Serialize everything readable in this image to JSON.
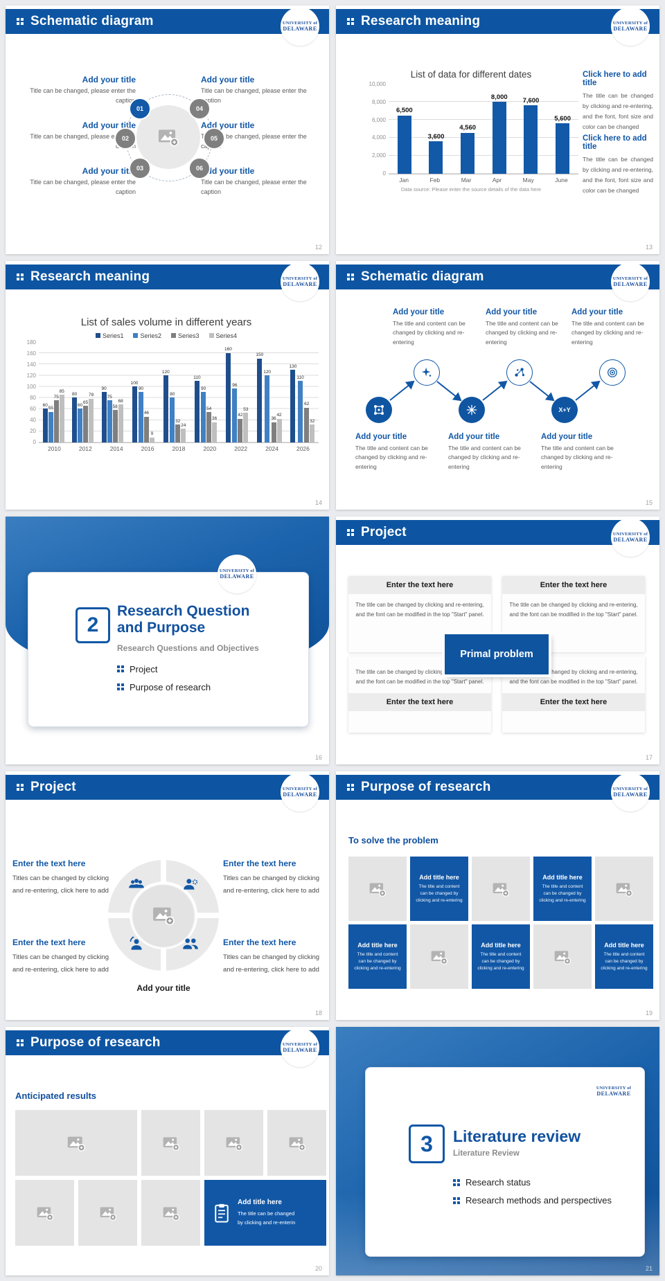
{
  "common": {
    "logo": {
      "l1": "UNIVERSITY of",
      "l2": "DELAWARE"
    }
  },
  "chart_data": [
    {
      "type": "bar",
      "title": "List of data for different dates",
      "categories": [
        "Jan",
        "Feb",
        "Mar",
        "Apr",
        "May",
        "June"
      ],
      "values": [
        6500,
        3600,
        4560,
        8000,
        7600,
        5600
      ],
      "labels": [
        "6,500",
        "3,600",
        "4,560",
        "8,000",
        "7,600",
        "5,600"
      ],
      "yticks": [
        "10,000",
        "8,000",
        "6,000",
        "4,000",
        "2,000",
        "0"
      ],
      "ylim": [
        0,
        10000
      ],
      "grid": "horizontal",
      "bar_color": "#1259a7",
      "caption": "Data source: Please enter the source details of the data here"
    },
    {
      "type": "bar",
      "title": "List of sales volume in different years",
      "categories": [
        "2010",
        "2012",
        "2014",
        "2016",
        "2018",
        "2020",
        "2022",
        "2024",
        "2026"
      ],
      "series": [
        {
          "name": "Series1",
          "values": [
            60,
            80,
            90,
            100,
            120,
            110,
            160,
            150,
            130
          ]
        },
        {
          "name": "Series2",
          "values": [
            55,
            60,
            75,
            90,
            80,
            90,
            96,
            120,
            110
          ]
        },
        {
          "name": "Series3",
          "values": [
            75,
            65,
            58,
            46,
            32,
            54,
            42,
            36,
            62
          ]
        },
        {
          "name": "Series4",
          "values": [
            85,
            78,
            68,
            9,
            24,
            36,
            53,
            42,
            32
          ]
        }
      ],
      "colors": [
        "#1f4e8c",
        "#4080c4",
        "#7f7f7f",
        "#bfbfbf"
      ],
      "yticks": [
        "180",
        "160",
        "140",
        "120",
        "100",
        "80",
        "60",
        "40",
        "20",
        "0"
      ],
      "ylim": [
        0,
        180
      ],
      "grid": "horizontal",
      "legend_position": "top"
    }
  ],
  "slides": [
    {
      "header": "Schematic diagram",
      "page": "12",
      "nodes": [
        "01",
        "02",
        "03",
        "04",
        "05",
        "06"
      ],
      "items": [
        {
          "title": "Add your title",
          "caption": "Title can be changed, please enter the caption"
        },
        {
          "title": "Add your title",
          "caption": "Title can be changed, please enter the caption"
        },
        {
          "title": "Add your title",
          "caption": "Title can be changed, please enter the caption"
        },
        {
          "title": "Add your title",
          "caption": "Title can be changed, please enter the caption"
        },
        {
          "title": "Add your title",
          "caption": "Title can be changed, please enter the caption"
        },
        {
          "title": "Add your title",
          "caption": "Title can be changed, please enter the caption"
        }
      ]
    },
    {
      "header": "Research meaning",
      "page": "13",
      "blocks": [
        {
          "title": "Click here to add title",
          "body": "The title can be changed by clicking and re-entering, and the font, font size and color can be changed"
        },
        {
          "title": "Click here to add title",
          "body": "The title can be changed by clicking and re-entering, and the font, font size and color can be changed"
        }
      ]
    },
    {
      "header": "Research meaning",
      "page": "14"
    },
    {
      "header": "Schematic diagram",
      "page": "15",
      "xy_label": "X+Y",
      "top_items": [
        {
          "title": "Add your title",
          "body": "The title and content can be changed by clicking and re-entering"
        },
        {
          "title": "Add your title",
          "body": "The title and content can be changed by clicking and re-entering"
        },
        {
          "title": "Add your title",
          "body": "The title and content can be changed by clicking and re-entering"
        }
      ],
      "bottom_items": [
        {
          "title": "Add your title",
          "body": "The title and content can be changed by clicking and re-entering"
        },
        {
          "title": "Add your title",
          "body": "The title and content can be changed by clicking and re-entering"
        },
        {
          "title": "Add your title",
          "body": "The title and content can be changed by clicking and re-entering"
        }
      ]
    },
    {
      "type": "section",
      "page": "16",
      "number": "2",
      "title_line1": "Research Question",
      "title_line2": "and Purpose",
      "subtitle": "Research Questions and Objectives",
      "items": [
        "Project",
        "Purpose of research"
      ]
    },
    {
      "header": "Project",
      "page": "17",
      "center_label": "Primal problem",
      "cards": [
        {
          "title": "Enter the text here",
          "body": "The title can be changed by clicking and re-entering, and the font can be modified in the top \"Start\" panel."
        },
        {
          "title": "Enter the text here",
          "body": "The title can be changed by clicking and re-entering, and the font can be modified in the top \"Start\" panel."
        },
        {
          "title": "Enter the text here",
          "body": "The title can be changed by clicking and re-entering, and the font can be modified in the top \"Start\" panel."
        },
        {
          "title": "Enter the text here",
          "body": "The title can be changed by clicking and re-entering, and the font can be modified in the top \"Start\" panel."
        }
      ]
    },
    {
      "header": "Project",
      "page": "18",
      "center_caption": "Add your title",
      "blocks": [
        {
          "title": "Enter the text here",
          "body": "Titles can be changed by clicking and re-entering, click here to add"
        },
        {
          "title": "Enter the text here",
          "body": "Titles can be changed by clicking and re-entering, click here to add"
        },
        {
          "title": "Enter the text here",
          "body": "Titles can be changed by clicking and re-entering, click here to add"
        },
        {
          "title": "Enter the text here",
          "body": "Titles can be changed by clicking and re-entering, click here to add"
        }
      ]
    },
    {
      "header": "Purpose of research",
      "page": "19",
      "heading": "To solve the problem",
      "tile": {
        "title": "Add title here",
        "body": "The title and content can be changed by clicking and re-entering"
      }
    },
    {
      "header": "Purpose of research",
      "page": "20",
      "heading": "Anticipated results",
      "tile": {
        "title": "Add title here",
        "line1": "The title can be changed",
        "line2": "by clicking and re-enterin"
      }
    },
    {
      "type": "section",
      "page": "21",
      "number": "3",
      "title_line1": "Literature review",
      "subtitle": "Literature Review",
      "items": [
        "Research status",
        "Research methods and perspectives"
      ]
    }
  ]
}
